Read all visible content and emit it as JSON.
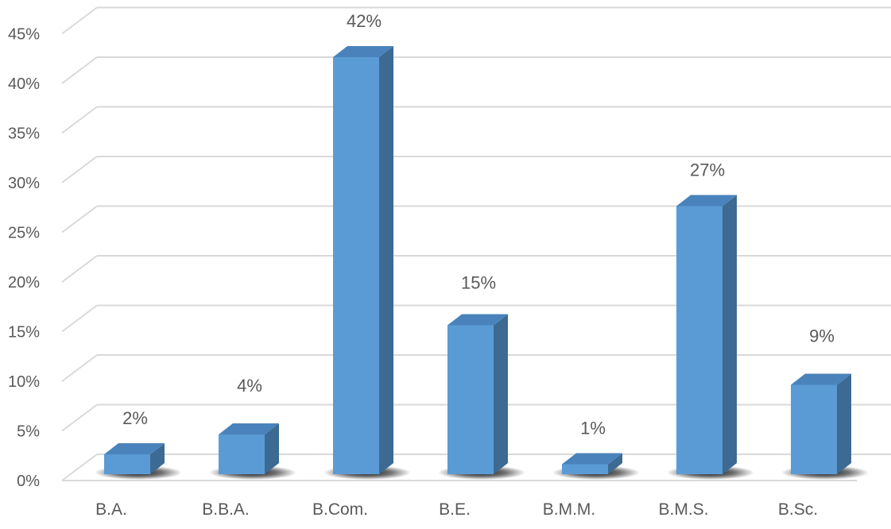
{
  "chart_data": {
    "type": "bar",
    "title": "",
    "xlabel": "",
    "ylabel": "",
    "categories": [
      "B.A.",
      "B.B.A.",
      "B.Com.",
      "B.E.",
      "B.M.M.",
      "B.M.S.",
      "B.Sc."
    ],
    "values": [
      2,
      4,
      42,
      15,
      1,
      27,
      9
    ],
    "data_labels": [
      "2%",
      "4%",
      "42%",
      "15%",
      "1%",
      "27%",
      "9%"
    ],
    "y_ticks": [
      0,
      5,
      10,
      15,
      20,
      25,
      30,
      35,
      40,
      45
    ],
    "y_tick_labels": [
      "0%",
      "5%",
      "10%",
      "15%",
      "20%",
      "25%",
      "30%",
      "35%",
      "40%",
      "45%"
    ],
    "ylim": [
      0,
      45
    ],
    "grid": true,
    "legend": "none",
    "style": "3d-column",
    "colors": {
      "bar_front": "#5b9bd5",
      "bar_side": "#3c6a93",
      "bar_top": "#4a83bb",
      "grid": "#d9d9d9",
      "text": "#595959"
    }
  }
}
